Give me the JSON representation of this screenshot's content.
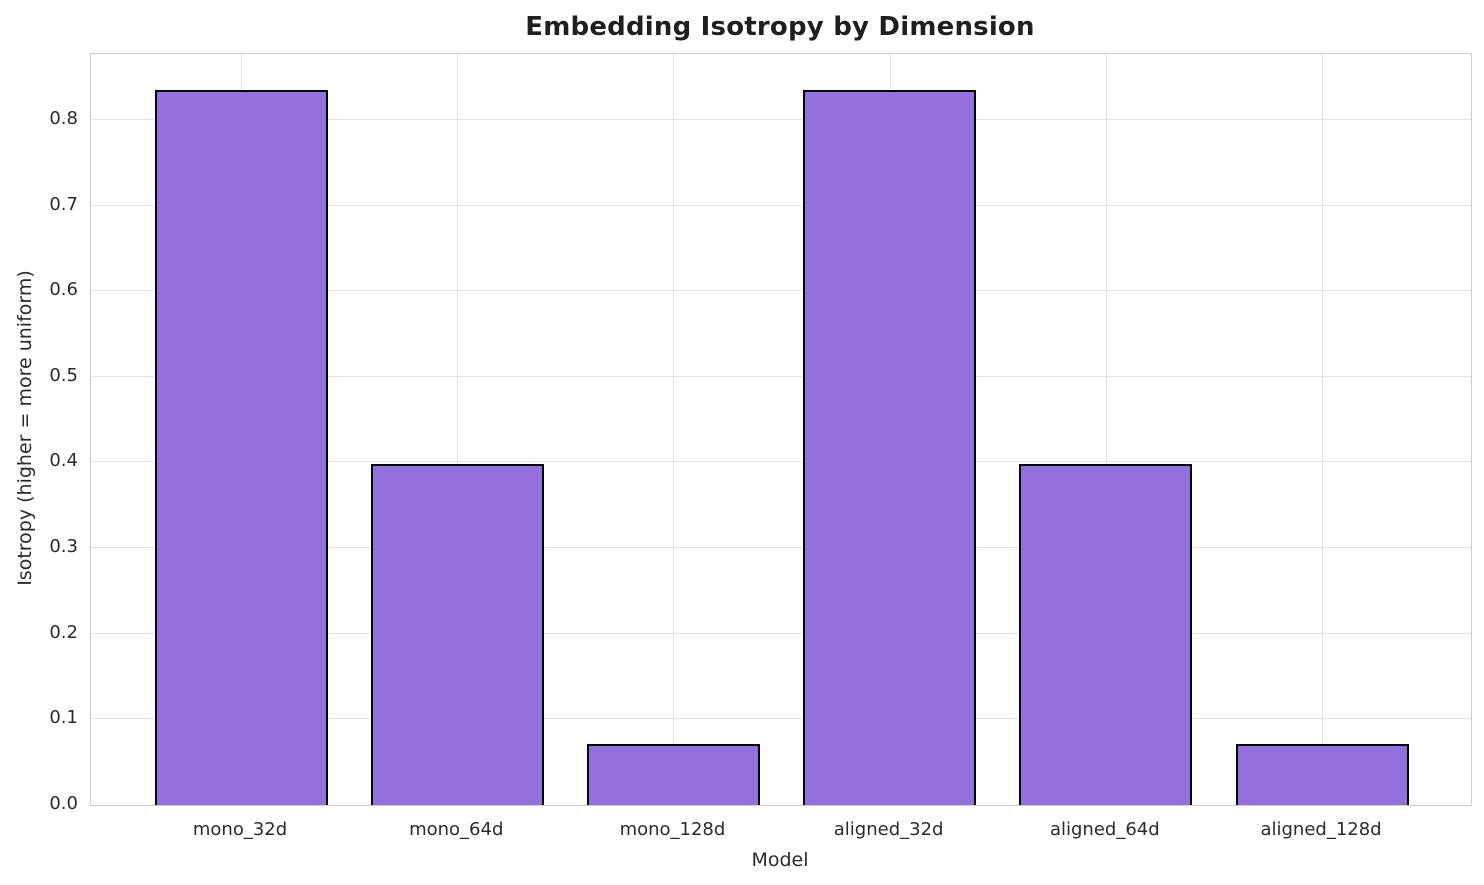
{
  "chart_data": {
    "type": "bar",
    "title": "Embedding Isotropy by Dimension",
    "xlabel": "Model",
    "ylabel": "Isotropy (higher = more uniform)",
    "categories": [
      "mono_32d",
      "mono_64d",
      "mono_128d",
      "aligned_32d",
      "aligned_64d",
      "aligned_128d"
    ],
    "values": [
      0.835,
      0.398,
      0.071,
      0.835,
      0.398,
      0.071
    ],
    "yticks": [
      0.0,
      0.1,
      0.2,
      0.3,
      0.4,
      0.5,
      0.6,
      0.7,
      0.8
    ],
    "ytick_labels": [
      "0.0",
      "0.1",
      "0.2",
      "0.3",
      "0.4",
      "0.5",
      "0.6",
      "0.7",
      "0.8"
    ],
    "ylim": [
      0,
      0.877
    ],
    "grid": true,
    "legend": null,
    "colors": {
      "bar_fill": "#9370DB",
      "bar_edge": "#000000",
      "gridline": "#e2e2e2",
      "spine": "#cccccc",
      "text": "#2b2b2b",
      "title_text": "#1f1f1f",
      "background": "#ffffff"
    }
  }
}
